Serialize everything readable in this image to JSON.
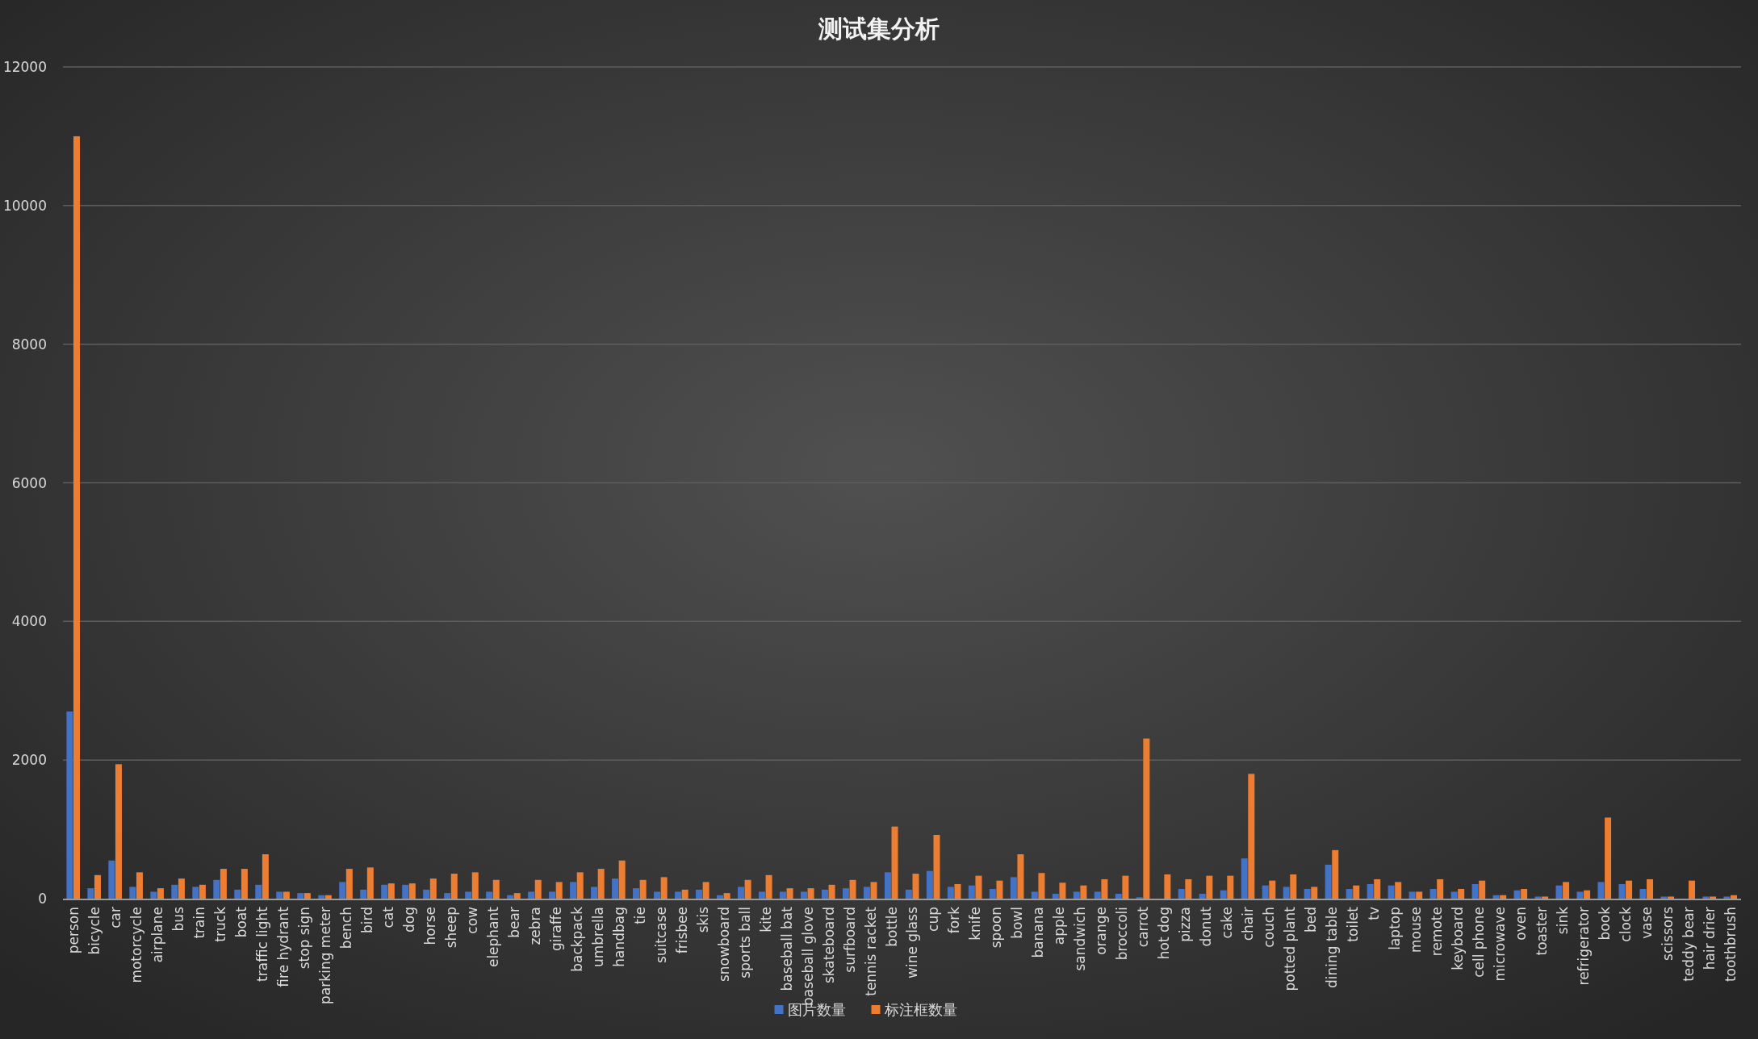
{
  "chart_data": {
    "type": "bar",
    "title": "测试集分析",
    "categories": [
      "person",
      "bicycle",
      "car",
      "motorcycle",
      "airplane",
      "bus",
      "train",
      "truck",
      "boat",
      "traffic light",
      "fire hydrant",
      "stop sign",
      "parking meter",
      "bench",
      "bird",
      "cat",
      "dog",
      "horse",
      "sheep",
      "cow",
      "elephant",
      "bear",
      "zebra",
      "giraffe",
      "backpack",
      "umbrella",
      "handbag",
      "tie",
      "suitcase",
      "frisbee",
      "skis",
      "snowboard",
      "sports ball",
      "kite",
      "baseball bat",
      "baseball glove",
      "skateboard",
      "surfboard",
      "tennis racket",
      "bottle",
      "wine glass",
      "cup",
      "fork",
      "knife",
      "spoon",
      "bowl",
      "banana",
      "apple",
      "sandwich",
      "orange",
      "broccoli",
      "carrot",
      "hot dog",
      "pizza",
      "donut",
      "cake",
      "chair",
      "couch",
      "potted plant",
      "bed",
      "dining table",
      "toilet",
      "tv",
      "laptop",
      "mouse",
      "remote",
      "keyboard",
      "cell phone",
      "microwave",
      "oven",
      "toaster",
      "sink",
      "refrigerator",
      "book",
      "clock",
      "vase",
      "scissors",
      "teddy bear",
      "hair drier",
      "toothbrush"
    ],
    "series": [
      {
        "name": "图片数量",
        "color": "#4472c4",
        "values": [
          2700,
          150,
          550,
          170,
          100,
          200,
          170,
          270,
          130,
          200,
          100,
          80,
          50,
          240,
          130,
          200,
          200,
          130,
          80,
          100,
          100,
          50,
          100,
          100,
          240,
          170,
          290,
          150,
          100,
          100,
          130,
          50,
          170,
          100,
          100,
          100,
          130,
          150,
          170,
          380,
          130,
          400,
          170,
          190,
          140,
          310,
          100,
          70,
          100,
          100,
          70,
          20,
          0,
          140,
          70,
          120,
          580,
          190,
          170,
          140,
          490,
          140,
          210,
          190,
          100,
          140,
          100,
          210,
          50,
          120,
          30,
          190,
          100,
          240,
          210,
          140,
          30,
          0,
          30,
          30
        ]
      },
      {
        "name": "标注框数量",
        "color": "#ed7d31",
        "values": [
          11000,
          340,
          1940,
          380,
          150,
          290,
          200,
          430,
          430,
          640,
          100,
          80,
          50,
          430,
          450,
          220,
          220,
          290,
          360,
          380,
          270,
          80,
          270,
          240,
          380,
          430,
          550,
          270,
          310,
          130,
          240,
          80,
          270,
          340,
          150,
          150,
          200,
          270,
          240,
          1040,
          360,
          920,
          210,
          330,
          260,
          640,
          370,
          230,
          190,
          280,
          330,
          2310,
          350,
          280,
          330,
          330,
          1800,
          260,
          350,
          170,
          700,
          190,
          280,
          240,
          100,
          280,
          140,
          260,
          50,
          140,
          30,
          240,
          120,
          1170,
          260,
          280,
          30,
          260,
          30,
          50
        ]
      }
    ],
    "ylim": [
      0,
      12000
    ],
    "yticks": [
      0,
      2000,
      4000,
      6000,
      8000,
      10000,
      12000
    ],
    "grid": "y",
    "legend": "bottom"
  }
}
